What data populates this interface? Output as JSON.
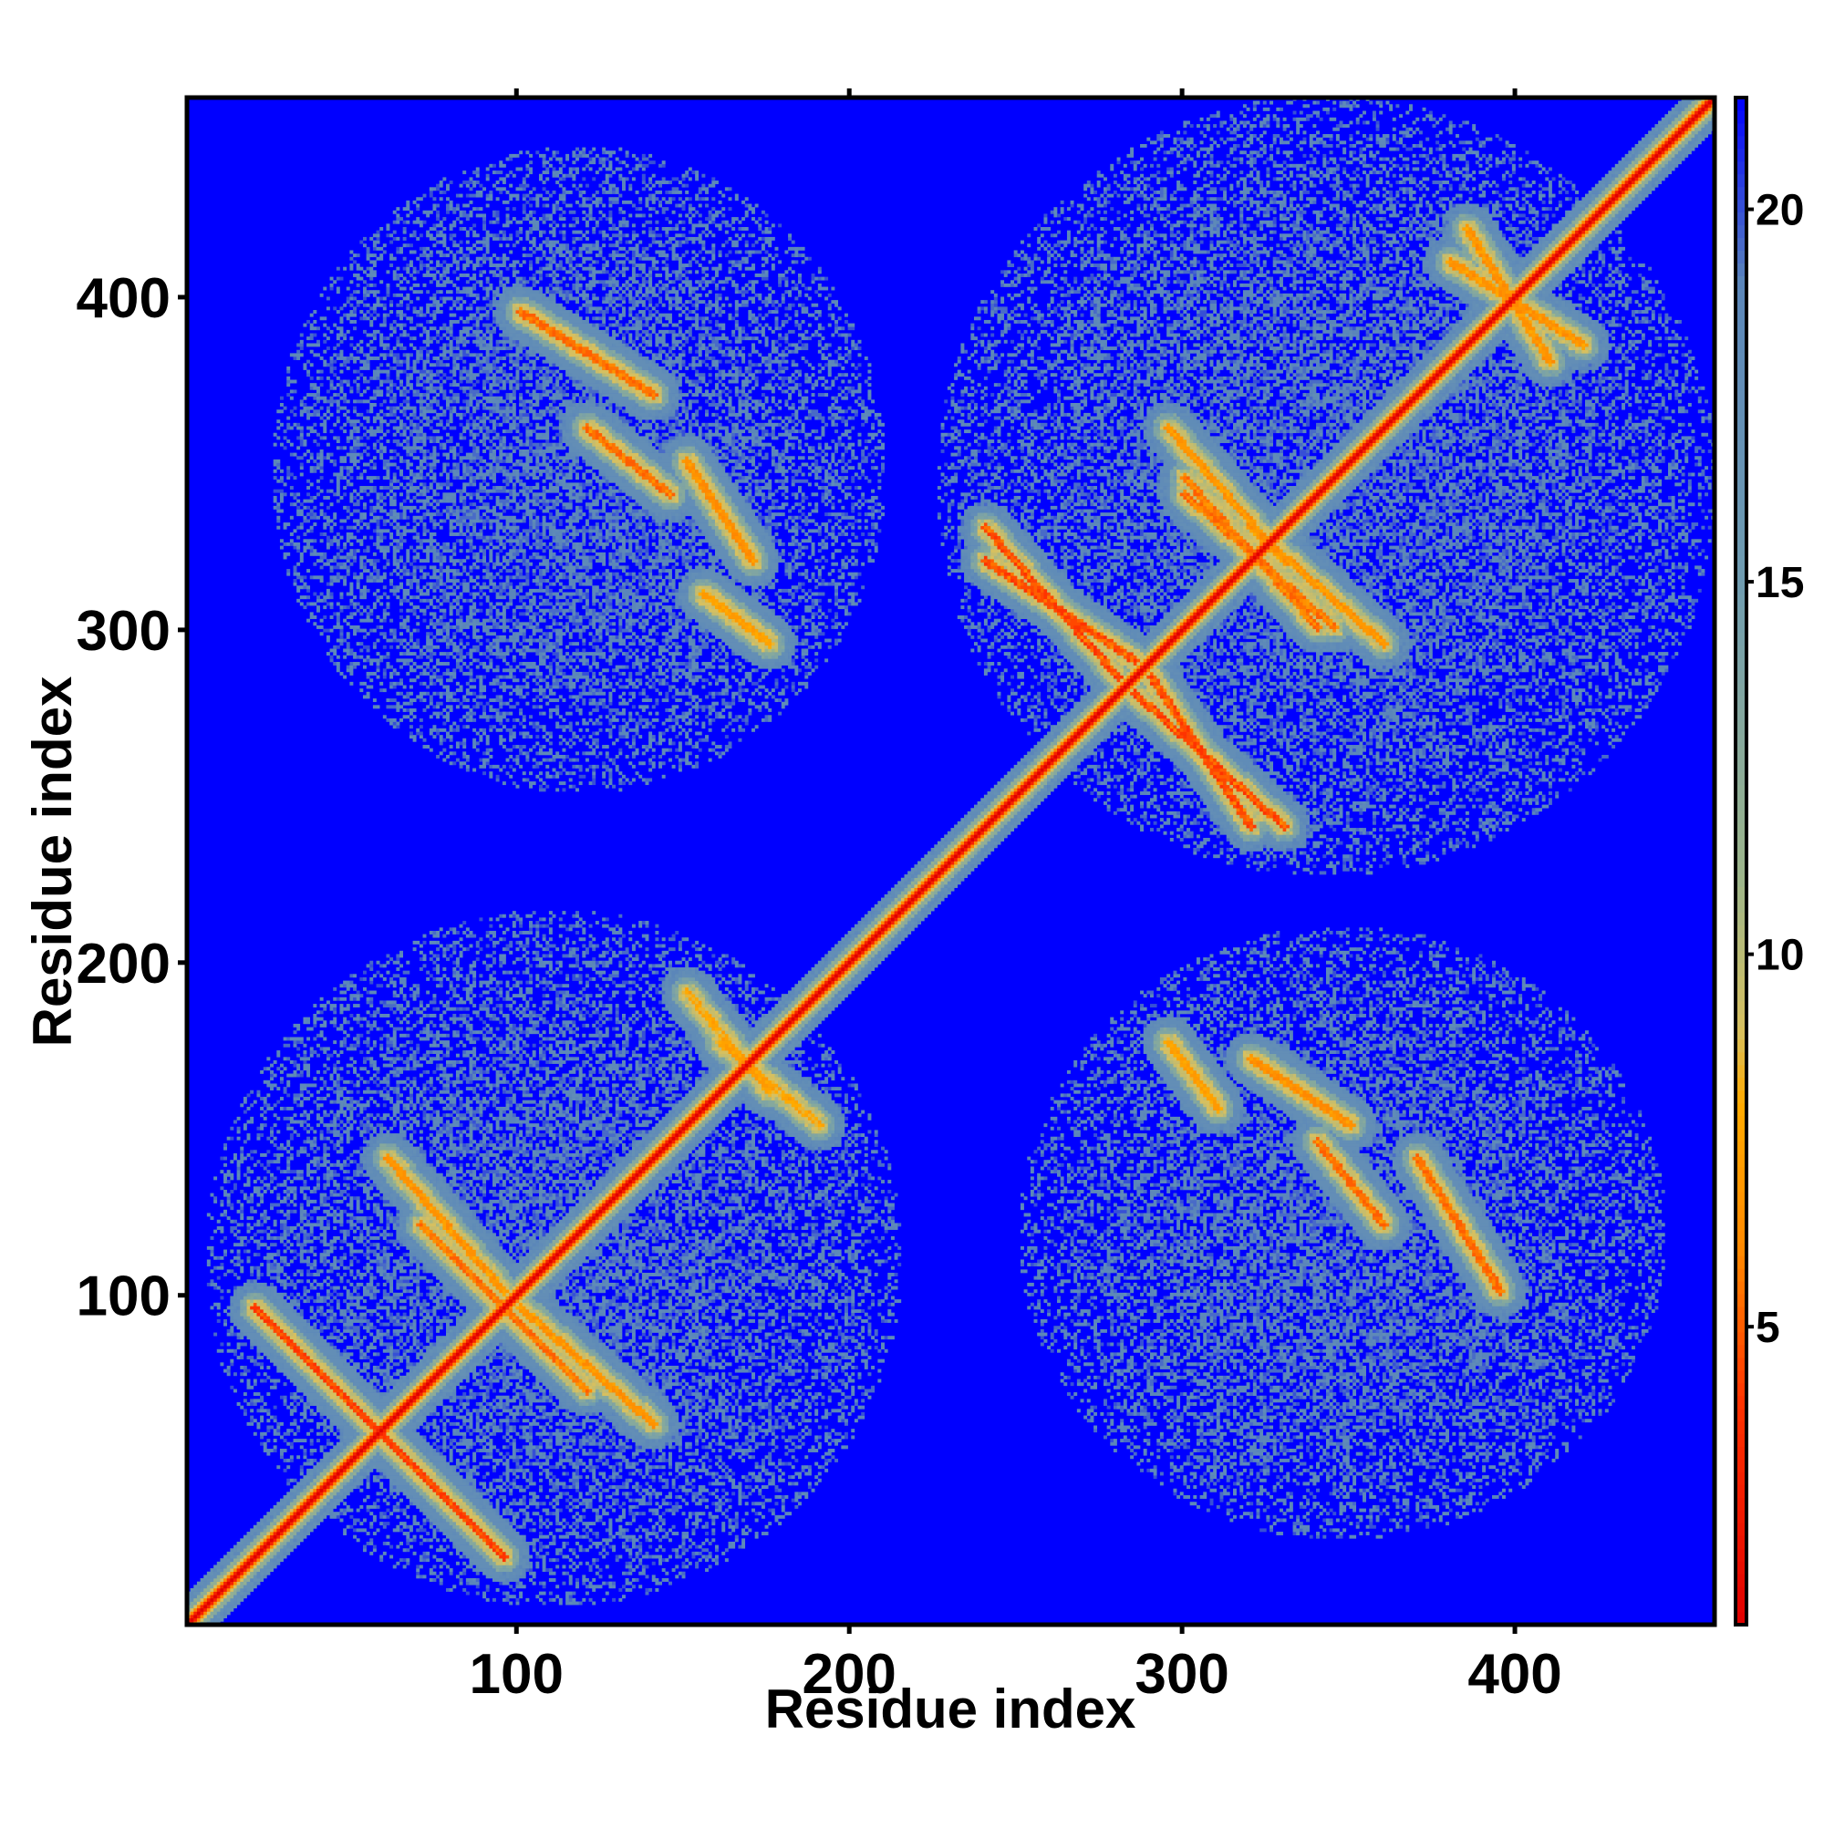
{
  "chart_data": {
    "type": "heatmap",
    "title": "",
    "xlabel": "Residue index",
    "ylabel": "Residue index",
    "n_residues": 460,
    "xlim": [
      1,
      460
    ],
    "ylim": [
      1,
      460
    ],
    "x_ticks": [
      100,
      200,
      300,
      400
    ],
    "y_ticks": [
      100,
      200,
      300,
      400
    ],
    "colorbar": {
      "ticks": [
        5,
        10,
        15,
        20
      ],
      "range": [
        1,
        21.5
      ],
      "colors": [
        {
          "value": 1,
          "color": "#e00000"
        },
        {
          "value": 4,
          "color": "#ff3300"
        },
        {
          "value": 6,
          "color": "#ff8800"
        },
        {
          "value": 8,
          "color": "#ffaa00"
        },
        {
          "value": 9,
          "color": "#d6c060"
        },
        {
          "value": 11,
          "color": "#9db58a"
        },
        {
          "value": 15,
          "color": "#6f9cb0"
        },
        {
          "value": 19,
          "color": "#5b86b9"
        },
        {
          "value": 21.5,
          "color": "#0000ff"
        }
      ]
    },
    "value_unit_hint": "distance (contact map)",
    "background_value": 21.5,
    "diagonal_value": 1,
    "domains": [
      {
        "start": 1,
        "end": 210
      },
      {
        "start": 230,
        "end": 460
      }
    ],
    "contact_bands": [
      {
        "name": "antiparallel-1",
        "from": [
          20,
          95
        ],
        "to": [
          60,
          55
        ],
        "value": 4
      },
      {
        "name": "antiparallel-2",
        "from": [
          55,
          60
        ],
        "to": [
          95,
          20
        ],
        "value": 4
      },
      {
        "name": "antiparallel-3",
        "from": [
          70,
          120
        ],
        "to": [
          110,
          80
        ],
        "value": 5
      },
      {
        "name": "antiparallel-4",
        "from": [
          100,
          95
        ],
        "to": [
          140,
          60
        ],
        "value": 6
      },
      {
        "name": "antiparallel-5",
        "from": [
          240,
          320
        ],
        "to": [
          285,
          290
        ],
        "value": 4
      },
      {
        "name": "antiparallel-6",
        "from": [
          285,
          280
        ],
        "to": [
          330,
          240
        ],
        "value": 4
      },
      {
        "name": "antiparallel-7",
        "from": [
          300,
          340
        ],
        "to": [
          345,
          300
        ],
        "value": 5
      },
      {
        "name": "antiparallel-8",
        "from": [
          320,
          330
        ],
        "to": [
          360,
          295
        ],
        "value": 6
      },
      {
        "name": "interdomain-1",
        "from": [
          100,
          395
        ],
        "to": [
          140,
          370
        ],
        "value": 5
      },
      {
        "name": "interdomain-2",
        "from": [
          120,
          360
        ],
        "to": [
          145,
          340
        ],
        "value": 5
      },
      {
        "name": "interdomain-3",
        "from": [
          150,
          350
        ],
        "to": [
          170,
          320
        ],
        "value": 6
      },
      {
        "name": "interdomain-4",
        "from": [
          155,
          310
        ],
        "to": [
          175,
          295
        ],
        "value": 7
      },
      {
        "name": "interdomain-5",
        "from": [
          395,
          100
        ],
        "to": [
          370,
          140
        ],
        "value": 5
      },
      {
        "name": "interdomain-6",
        "from": [
          360,
          120
        ],
        "to": [
          340,
          145
        ],
        "value": 5
      },
      {
        "name": "interdomain-7",
        "from": [
          350,
          150
        ],
        "to": [
          320,
          170
        ],
        "value": 6
      },
      {
        "name": "interdomain-8",
        "from": [
          310,
          155
        ],
        "to": [
          295,
          175
        ],
        "value": 7
      },
      {
        "name": "cluster-a",
        "from": [
          160,
          175
        ],
        "to": [
          190,
          150
        ],
        "value": 7
      },
      {
        "name": "cluster-b",
        "from": [
          380,
          410
        ],
        "to": [
          420,
          385
        ],
        "value": 6
      }
    ],
    "halo_regions": [
      {
        "x": [
          5,
          215
        ],
        "y": [
          5,
          215
        ]
      },
      {
        "x": [
          225,
          460
        ],
        "y": [
          225,
          460
        ]
      },
      {
        "x": [
          25,
          210
        ],
        "y": [
          250,
          445
        ]
      },
      {
        "x": [
          250,
          445
        ],
        "y": [
          25,
          210
        ]
      }
    ]
  }
}
